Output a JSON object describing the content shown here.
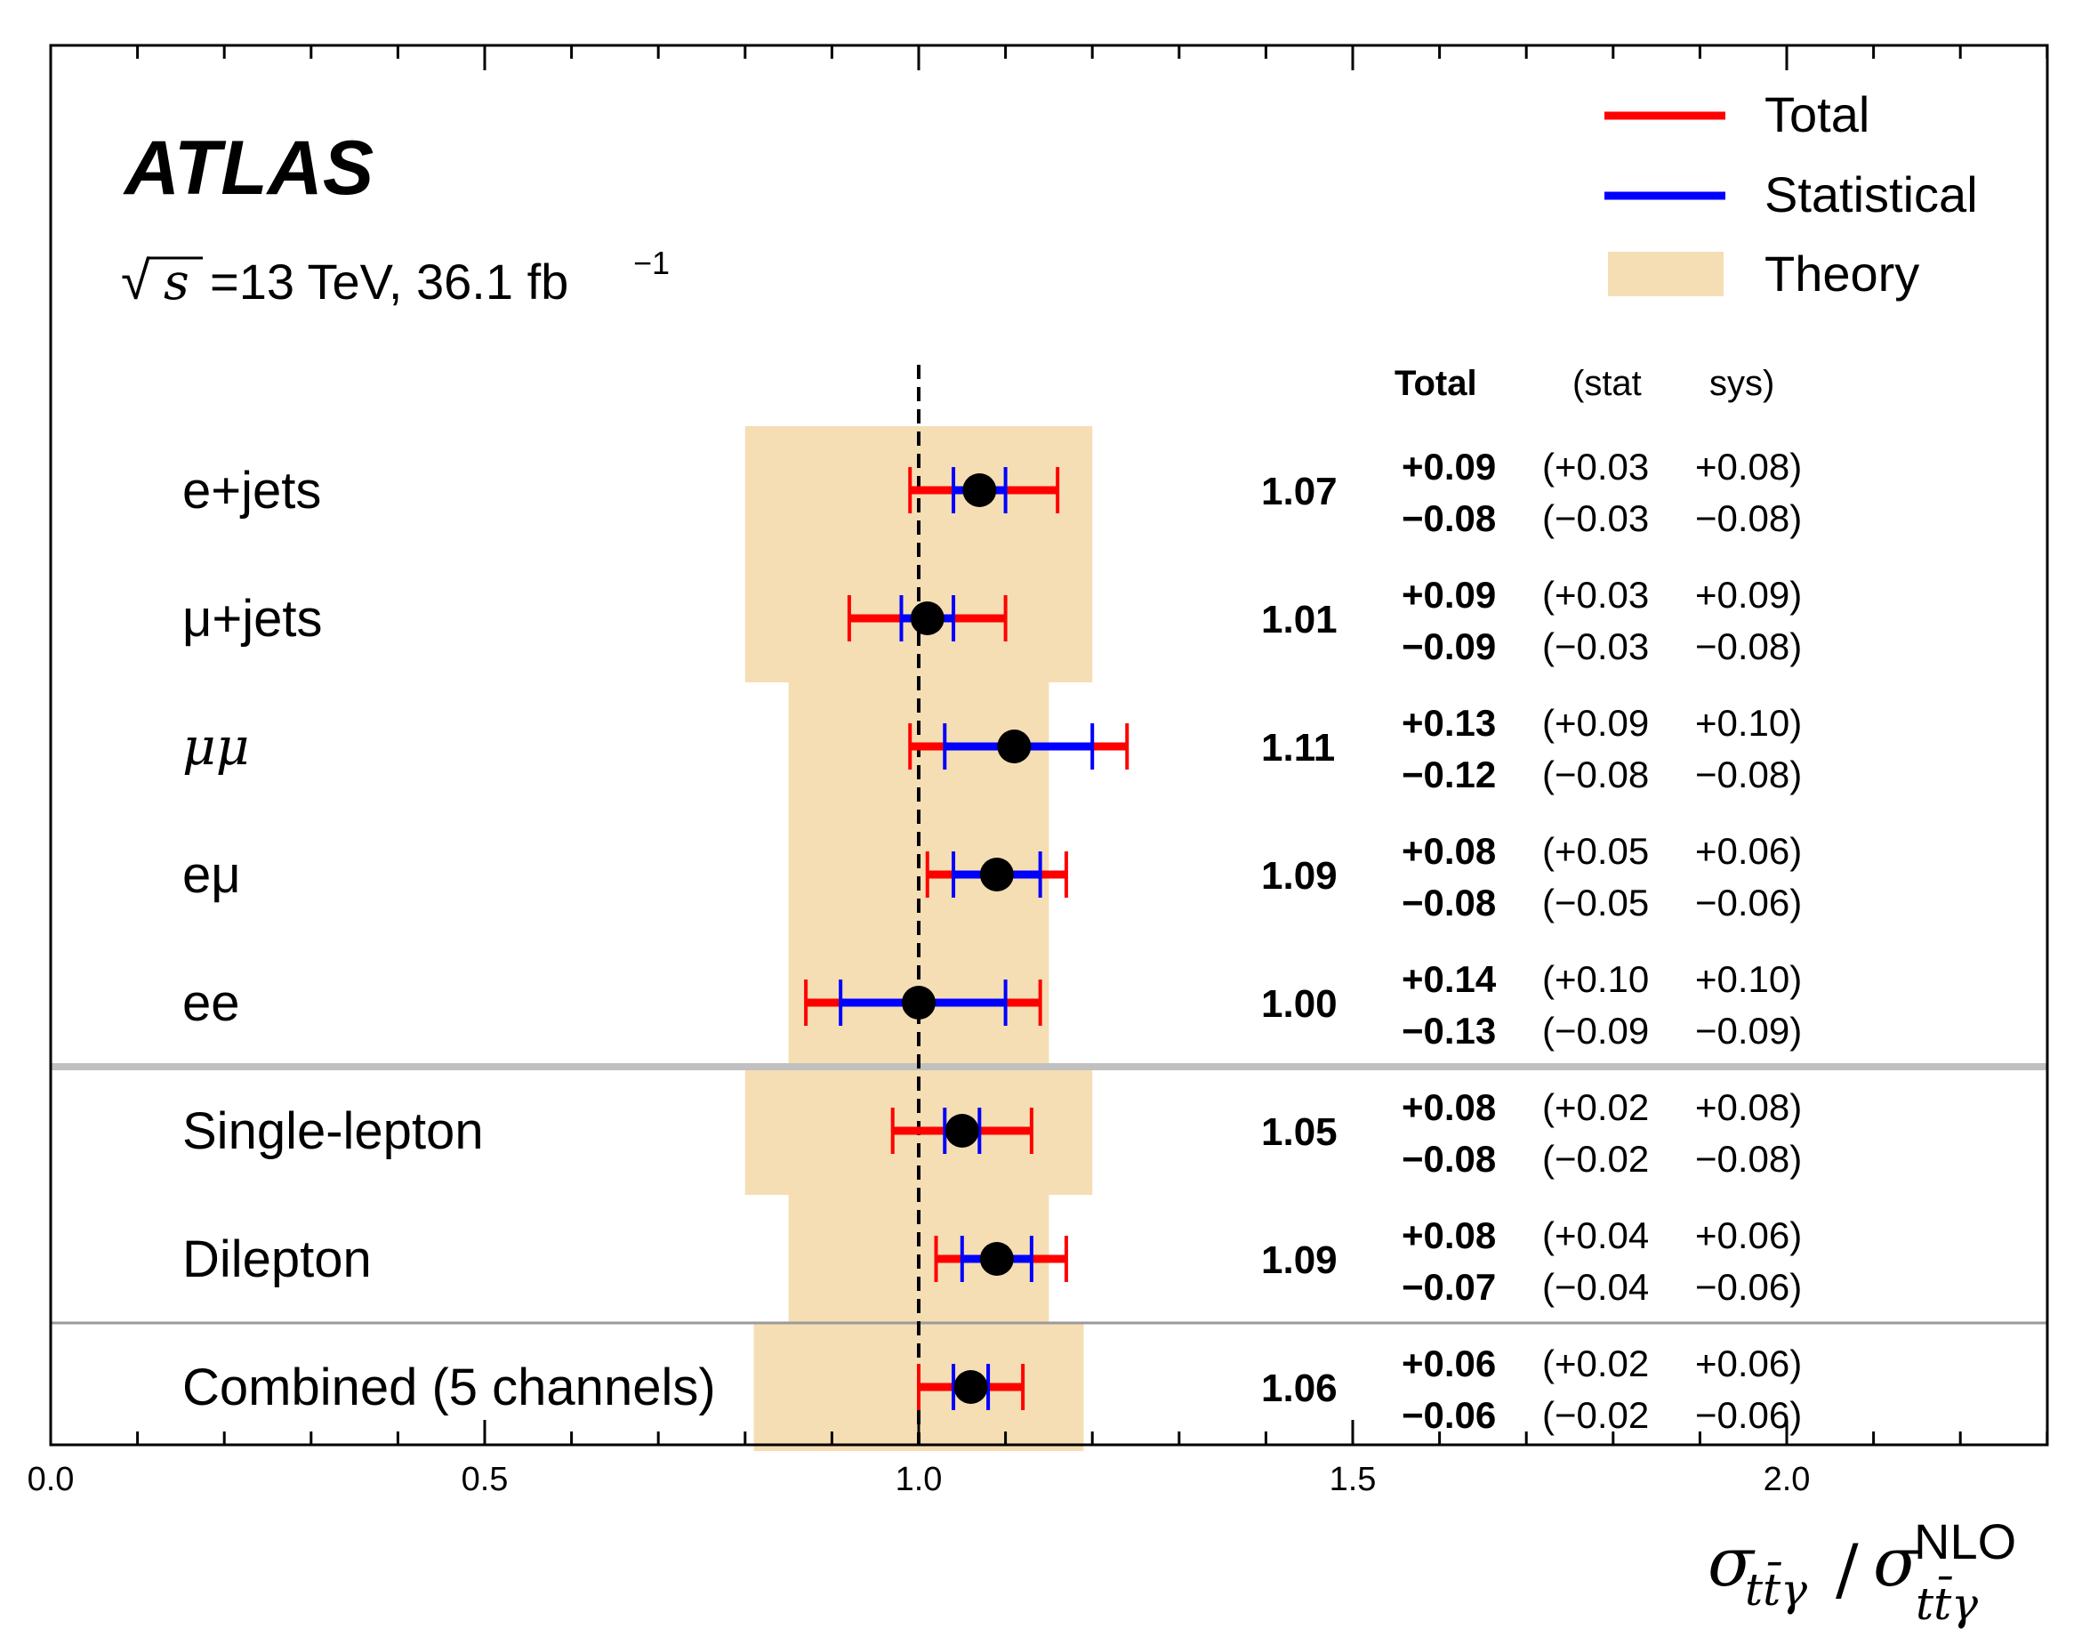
{
  "chart_data": {
    "type": "forest",
    "experiment": "ATLAS",
    "energy_label": "=13 TeV, 36.1 fb",
    "lumi_exponent": "−1",
    "sqrt_s_symbol": "√",
    "sqrt_s_var": "s",
    "xlim": [
      0.0,
      2.3
    ],
    "xticks": [
      0.0,
      0.5,
      1.0,
      1.5,
      2.0
    ],
    "xtick_labels": [
      "0.0",
      "0.5",
      "1.0",
      "1.5",
      "2.0"
    ],
    "reference_line": 1.0,
    "xlabel": {
      "sigma": "σ",
      "sub": "tt̄γ",
      "slash": "/",
      "sup": "NLO"
    },
    "legend": [
      {
        "label": "Total",
        "kind": "line",
        "color": "#ff0000"
      },
      {
        "label": "Statistical",
        "kind": "line",
        "color": "#0000ff"
      },
      {
        "label": "Theory",
        "kind": "band",
        "color": "#f5deb3"
      }
    ],
    "column_headers": {
      "total": "Total",
      "stat": "(stat",
      "sys": "sys)"
    },
    "colors": {
      "total": "#ff0000",
      "stat": "#0000ff",
      "theory": "#f5deb3",
      "separator_thick": "#c0c0c0",
      "separator_thin": "#9a9a9a"
    },
    "separators_after": [
      4,
      6
    ],
    "channels": [
      {
        "label": "e+jets",
        "label_style": "normal",
        "value": 1.07,
        "value_label": "1.07",
        "total": [
          0.09,
          0.08
        ],
        "stat": [
          0.03,
          0.03
        ],
        "theory": [
          0.8,
          1.2
        ],
        "total_text": [
          "+0.09",
          "−0.08"
        ],
        "stat_text": [
          "(+0.03",
          "(−0.03"
        ],
        "sys_text": [
          "+0.08)",
          "−0.08)"
        ]
      },
      {
        "label": "μ+jets",
        "label_style": "mu",
        "value": 1.01,
        "value_label": "1.01",
        "total": [
          0.09,
          0.09
        ],
        "stat": [
          0.03,
          0.03
        ],
        "theory": [
          0.8,
          1.2
        ],
        "total_text": [
          "+0.09",
          "−0.09"
        ],
        "stat_text": [
          "(+0.03",
          "(−0.03"
        ],
        "sys_text": [
          "+0.09)",
          "−0.08)"
        ]
      },
      {
        "label": "μμ",
        "label_style": "italic",
        "value": 1.11,
        "value_label": "1.11",
        "total": [
          0.13,
          0.12
        ],
        "stat": [
          0.09,
          0.08
        ],
        "theory": [
          0.85,
          1.15
        ],
        "total_text": [
          "+0.13",
          "−0.12"
        ],
        "stat_text": [
          "(+0.09",
          "(−0.08"
        ],
        "sys_text": [
          "+0.10)",
          "−0.08)"
        ]
      },
      {
        "label": "eμ",
        "label_style": "mu",
        "value": 1.09,
        "value_label": "1.09",
        "total": [
          0.08,
          0.08
        ],
        "stat": [
          0.05,
          0.05
        ],
        "theory": [
          0.85,
          1.15
        ],
        "total_text": [
          "+0.08",
          "−0.08"
        ],
        "stat_text": [
          "(+0.05",
          "(−0.05"
        ],
        "sys_text": [
          "+0.06)",
          "−0.06)"
        ]
      },
      {
        "label": "ee",
        "label_style": "normal",
        "value": 1.0,
        "value_label": "1.00",
        "total": [
          0.14,
          0.13
        ],
        "stat": [
          0.1,
          0.09
        ],
        "theory": [
          0.85,
          1.15
        ],
        "total_text": [
          "+0.14",
          "−0.13"
        ],
        "stat_text": [
          "(+0.10",
          "(−0.09"
        ],
        "sys_text": [
          "+0.10)",
          "−0.09)"
        ]
      },
      {
        "label": "Single-lepton",
        "label_style": "normal",
        "value": 1.05,
        "value_label": "1.05",
        "total": [
          0.08,
          0.08
        ],
        "stat": [
          0.02,
          0.02
        ],
        "theory": [
          0.8,
          1.2
        ],
        "total_text": [
          "+0.08",
          "−0.08"
        ],
        "stat_text": [
          "(+0.02",
          "(−0.02"
        ],
        "sys_text": [
          "+0.08)",
          "−0.08)"
        ]
      },
      {
        "label": "Dilepton",
        "label_style": "normal",
        "value": 1.09,
        "value_label": "1.09",
        "total": [
          0.08,
          0.07
        ],
        "stat": [
          0.04,
          0.04
        ],
        "theory": [
          0.85,
          1.15
        ],
        "total_text": [
          "+0.08",
          "−0.07"
        ],
        "stat_text": [
          "(+0.04",
          "(−0.04"
        ],
        "sys_text": [
          "+0.06)",
          "−0.06)"
        ]
      },
      {
        "label": "Combined (5 channels)",
        "label_style": "normal",
        "value": 1.06,
        "value_label": "1.06",
        "total": [
          0.06,
          0.06
        ],
        "stat": [
          0.02,
          0.02
        ],
        "theory": [
          0.81,
          1.19
        ],
        "total_text": [
          "+0.06",
          "−0.06"
        ],
        "stat_text": [
          "(+0.02",
          "(−0.02"
        ],
        "sys_text": [
          "+0.06)",
          "−0.06)"
        ]
      }
    ]
  }
}
